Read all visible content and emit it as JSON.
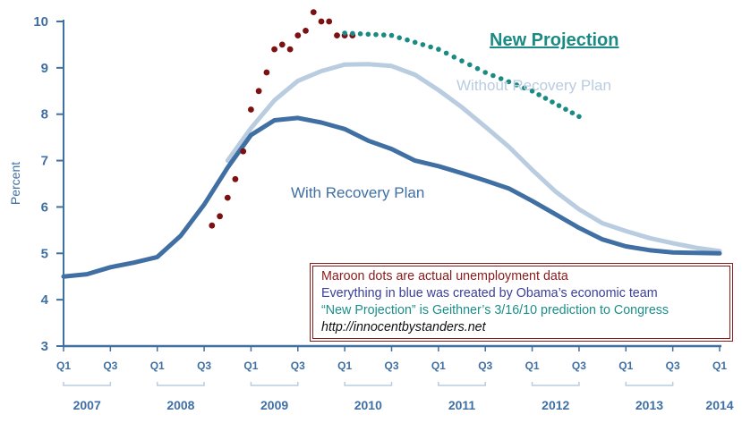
{
  "chart_data": {
    "type": "line",
    "ylabel": "Percent",
    "ylim": [
      3,
      10
    ],
    "yticks": [
      "3",
      "4",
      "5",
      "6",
      "7",
      "8",
      "9",
      "10"
    ],
    "grid": false,
    "quarter_labels": [
      "Q1",
      "Q3",
      "Q1",
      "Q3",
      "Q1",
      "Q3",
      "Q1",
      "Q3",
      "Q1",
      "Q3",
      "Q1",
      "Q3",
      "Q1",
      "Q3",
      "Q1"
    ],
    "years": [
      "2007",
      "2008",
      "2009",
      "2010",
      "2011",
      "2012",
      "2013",
      "2014"
    ],
    "series": [
      {
        "name": "With Recovery Plan",
        "label": "With Recovery Plan",
        "color": "#3f6fa3",
        "style": "line",
        "x": [
          2007.0,
          2007.25,
          2007.5,
          2007.75,
          2008.0,
          2008.25,
          2008.5,
          2008.75,
          2009.0,
          2009.25,
          2009.5,
          2009.75,
          2010.0,
          2010.25,
          2010.5,
          2010.75,
          2011.0,
          2011.25,
          2011.5,
          2011.75,
          2012.0,
          2012.25,
          2012.5,
          2012.75,
          2013.0,
          2013.25,
          2013.5,
          2013.75,
          2014.0
        ],
        "values": [
          4.5,
          4.55,
          4.7,
          4.8,
          4.92,
          5.38,
          6.05,
          6.85,
          7.55,
          7.87,
          7.92,
          7.82,
          7.68,
          7.43,
          7.25,
          7.0,
          6.88,
          6.73,
          6.57,
          6.4,
          6.13,
          5.84,
          5.55,
          5.3,
          5.15,
          5.07,
          5.02,
          5.01,
          5.0
        ]
      },
      {
        "name": "Without Recovery Plan",
        "label": "Without Recovery Plan",
        "color": "#b9cce0",
        "style": "line",
        "x": [
          2008.75,
          2009.0,
          2009.25,
          2009.5,
          2009.75,
          2010.0,
          2010.25,
          2010.5,
          2010.75,
          2011.0,
          2011.25,
          2011.5,
          2011.75,
          2012.0,
          2012.25,
          2012.5,
          2012.75,
          2013.0,
          2013.25,
          2013.5,
          2013.75,
          2014.0
        ],
        "values": [
          7.0,
          7.7,
          8.3,
          8.72,
          8.93,
          9.07,
          9.08,
          9.04,
          8.85,
          8.52,
          8.15,
          7.73,
          7.3,
          6.8,
          6.33,
          5.95,
          5.65,
          5.48,
          5.33,
          5.22,
          5.12,
          5.05
        ]
      },
      {
        "name": "Actual unemployment",
        "color": "#7b1113",
        "style": "dots",
        "x": [
          2008.583,
          2008.667,
          2008.75,
          2008.833,
          2008.917,
          2009.0,
          2009.083,
          2009.167,
          2009.25,
          2009.333,
          2009.417,
          2009.5,
          2009.583,
          2009.667,
          2009.75,
          2009.833,
          2009.917,
          2010.0,
          2010.083
        ],
        "values": [
          5.6,
          5.8,
          6.2,
          6.6,
          7.2,
          8.1,
          8.5,
          8.9,
          9.4,
          9.5,
          9.4,
          9.7,
          9.8,
          10.2,
          10.0,
          10.0,
          9.7,
          9.7,
          9.7
        ]
      },
      {
        "name": "New Projection",
        "label": "New Projection",
        "color": "#1a8a84",
        "style": "dots",
        "x": [
          2010.0,
          2010.5,
          2011.0,
          2011.5,
          2012.0,
          2012.5
        ],
        "values": [
          9.75,
          9.7,
          9.4,
          8.9,
          8.5,
          7.95
        ]
      }
    ]
  },
  "notes": {
    "line1": "Maroon dots are actual unemployment data",
    "line2": "Everything in blue was created by Obama’s economic team",
    "line3": "“New Projection” is Geithner’s 3/16/10 prediction to Congress",
    "line4": "http://innocentbystanders.net"
  }
}
